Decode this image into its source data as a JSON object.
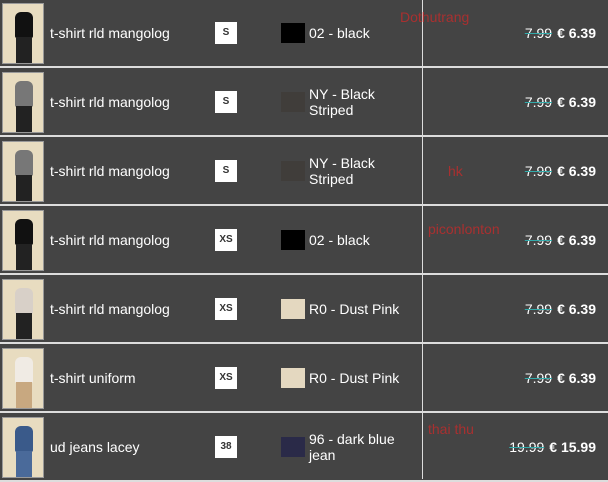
{
  "rows": [
    {
      "name": "t-shirt rld mangolog",
      "size": "S",
      "swatch": "#000000",
      "color": "02 - black",
      "old_price": "7.99",
      "price": "€ 6.39",
      "shirt": "#111111"
    },
    {
      "name": "t-shirt rld mangolog",
      "size": "S",
      "swatch": "#403d3a",
      "color": "NY - Black Striped",
      "old_price": "7.99",
      "price": "€ 6.39",
      "shirt": "#777777"
    },
    {
      "name": "t-shirt rld mangolog",
      "size": "S",
      "swatch": "#403d3a",
      "color": "NY - Black Striped",
      "old_price": "7.99",
      "price": "€ 6.39",
      "shirt": "#777777"
    },
    {
      "name": "t-shirt rld mangolog",
      "size": "XS",
      "swatch": "#000000",
      "color": "02 - black",
      "old_price": "7.99",
      "price": "€ 6.39",
      "shirt": "#111111"
    },
    {
      "name": "t-shirt rld mangolog",
      "size": "XS",
      "swatch": "#e4d8c0",
      "color": "R0 - Dust Pink",
      "old_price": "7.99",
      "price": "€ 6.39",
      "shirt": "#d8d0c8"
    },
    {
      "name": "t-shirt uniform",
      "size": "XS",
      "swatch": "#e4d8c0",
      "color": "R0 - Dust Pink",
      "old_price": "7.99",
      "price": "€ 6.39",
      "shirt": "#f0ebe4"
    },
    {
      "name": "ud jeans lacey",
      "size": "38",
      "swatch": "#2a2a48",
      "color": "96 - dark blue jean",
      "old_price": "19.99",
      "price": "€ 15.99",
      "shirt": "#3a5a8a"
    }
  ],
  "watermarks": [
    "Dothutrang",
    "hk",
    "piconlonton",
    "thai thu"
  ]
}
